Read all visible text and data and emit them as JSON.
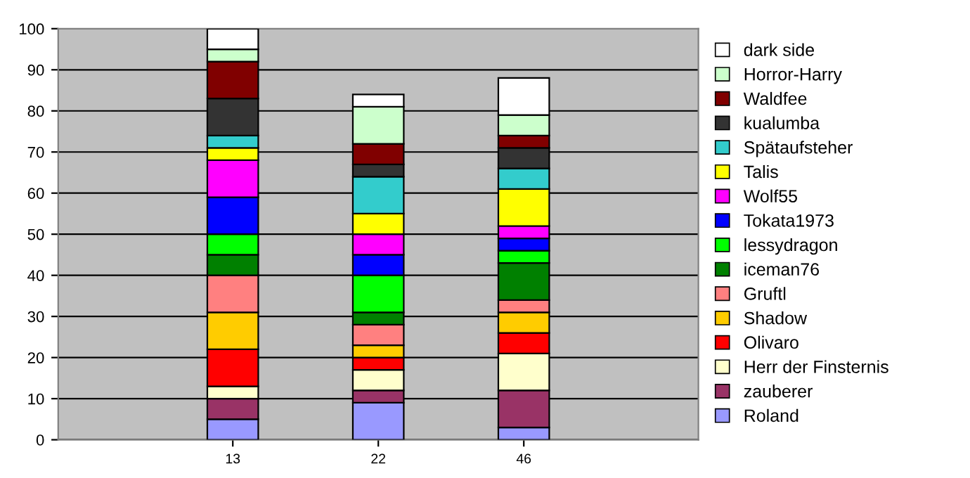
{
  "chart_data": {
    "type": "bar",
    "stacked": true,
    "categories": [
      "13",
      "22",
      "46"
    ],
    "ylim": [
      0,
      100
    ],
    "yticks": [
      0,
      10,
      20,
      30,
      40,
      50,
      60,
      70,
      80,
      90,
      100
    ],
    "grid": "y",
    "legend": "right",
    "series": [
      {
        "name": "Roland",
        "color": "#9999ff",
        "values": [
          5,
          9,
          3
        ]
      },
      {
        "name": "zauberer",
        "color": "#993366",
        "values": [
          5,
          3,
          9
        ]
      },
      {
        "name": "Herr der Finsternis",
        "color": "#ffffcc",
        "values": [
          3,
          5,
          9
        ]
      },
      {
        "name": "Olivaro",
        "color": "#ff0000",
        "values": [
          9,
          3,
          5
        ]
      },
      {
        "name": "Shadow",
        "color": "#ffcc00",
        "values": [
          9,
          3,
          5
        ]
      },
      {
        "name": "Gruftl",
        "color": "#ff8080",
        "values": [
          9,
          5,
          3
        ]
      },
      {
        "name": "iceman76",
        "color": "#008000",
        "values": [
          5,
          3,
          9
        ]
      },
      {
        "name": "lessydragon",
        "color": "#00ff00",
        "values": [
          5,
          9,
          3
        ]
      },
      {
        "name": "Tokata1973",
        "color": "#0000ff",
        "values": [
          9,
          5,
          3
        ]
      },
      {
        "name": "Wolf55",
        "color": "#ff00ff",
        "values": [
          9,
          5,
          3
        ]
      },
      {
        "name": "Talis",
        "color": "#ffff00",
        "values": [
          3,
          5,
          9
        ]
      },
      {
        "name": "Spätaufsteher",
        "color": "#33cccc",
        "values": [
          3,
          9,
          5
        ]
      },
      {
        "name": "kualumba",
        "color": "#333333",
        "values": [
          9,
          3,
          5
        ]
      },
      {
        "name": "Waldfee",
        "color": "#800000",
        "values": [
          9,
          5,
          3
        ]
      },
      {
        "name": "Horror-Harry",
        "color": "#ccffcc",
        "values": [
          3,
          9,
          5
        ]
      },
      {
        "name": "dark side",
        "color": "#ffffff",
        "values": [
          5,
          3,
          9
        ]
      }
    ]
  }
}
